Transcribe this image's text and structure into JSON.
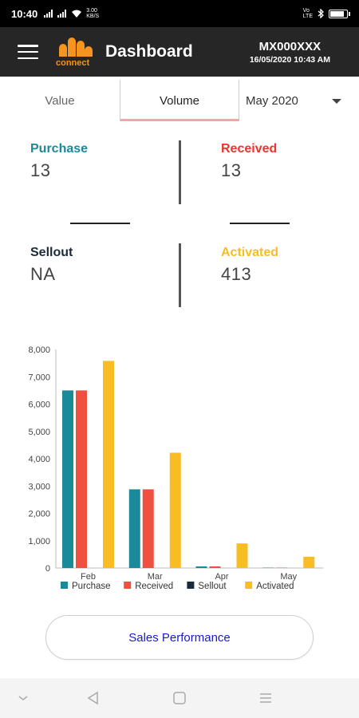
{
  "status_bar": {
    "time": "10:40",
    "speed": "3.00\nKB/S",
    "volte": "Vo\nLTE",
    "battery_level": 0.9
  },
  "header": {
    "logo_word": "connect",
    "title": "Dashboard",
    "code": "MX000XXX",
    "datetime": "16/05/2020 10:43 AM"
  },
  "tabs": {
    "value_label": "Value",
    "volume_label": "Volume",
    "month": "May 2020"
  },
  "stats": {
    "purchase": {
      "label": "Purchase",
      "value": "13",
      "color": "#1a8a9a"
    },
    "received": {
      "label": "Received",
      "value": "13",
      "color": "#f0322b"
    },
    "sellout": {
      "label": "Sellout",
      "value": "NA",
      "color": "#1b2a3a"
    },
    "activated": {
      "label": "Activated",
      "value": "413",
      "color": "#f7bd22"
    }
  },
  "chart_data": {
    "type": "bar",
    "categories": [
      "Feb",
      "Mar",
      "Apr",
      "May"
    ],
    "series": [
      {
        "name": "Purchase",
        "color": "#1a8a9a",
        "values": [
          6500,
          2880,
          60,
          13
        ]
      },
      {
        "name": "Received",
        "color": "#f0503f",
        "values": [
          6500,
          2880,
          60,
          13
        ]
      },
      {
        "name": "Sellout",
        "color": "#1b2a3a",
        "values": [
          0,
          0,
          0,
          0
        ]
      },
      {
        "name": "Activated",
        "color": "#f7bd22",
        "values": [
          7580,
          4220,
          900,
          413
        ]
      }
    ],
    "ylim": [
      0,
      8000
    ],
    "yticks": [
      "0",
      "1,000",
      "2,000",
      "3,000",
      "4,000",
      "5,000",
      "6,000",
      "7,000",
      "8,000"
    ],
    "legend_position": "bottom",
    "grid": false
  },
  "sales_button": {
    "label": "Sales Performance"
  },
  "nav": {
    "back_icon": "back-triangle-icon",
    "home_icon": "home-square-icon",
    "menu_icon": "menu-lines-icon",
    "down_icon": "chevron-down-icon"
  }
}
